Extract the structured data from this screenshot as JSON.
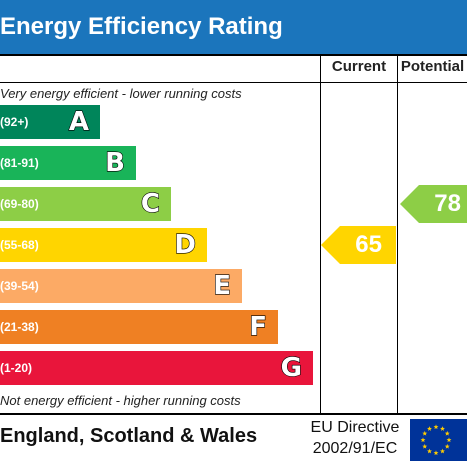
{
  "title": "Energy Efficiency Rating",
  "columns": {
    "current": "Current",
    "potential": "Potential"
  },
  "captions": {
    "top": "Very energy efficient - lower running costs",
    "bottom": "Not energy efficient - higher running costs"
  },
  "footer": {
    "country": "England, Scotland & Wales",
    "directive_line1": "EU Directive",
    "directive_line2": "2002/91/EC",
    "flag_icon": "eu-flag-icon"
  },
  "chart_data": {
    "type": "bar",
    "title": "Energy Efficiency Rating",
    "categories": [
      "A",
      "B",
      "C",
      "D",
      "E",
      "F",
      "G"
    ],
    "bands": [
      {
        "letter": "A",
        "range": "(92+)",
        "min": 92,
        "max": 100,
        "color": "#00855a"
      },
      {
        "letter": "B",
        "range": "(81-91)",
        "min": 81,
        "max": 91,
        "color": "#19b459"
      },
      {
        "letter": "C",
        "range": "(69-80)",
        "min": 69,
        "max": 80,
        "color": "#8dce46"
      },
      {
        "letter": "D",
        "range": "(55-68)",
        "min": 55,
        "max": 68,
        "color": "#ffd500"
      },
      {
        "letter": "E",
        "range": "(39-54)",
        "min": 39,
        "max": 54,
        "color": "#fcaa65"
      },
      {
        "letter": "F",
        "range": "(21-38)",
        "min": 21,
        "max": 38,
        "color": "#ef8023"
      },
      {
        "letter": "G",
        "range": "(1-20)",
        "min": 1,
        "max": 20,
        "color": "#e9153b"
      }
    ],
    "current": {
      "label": "Current",
      "value": 65,
      "band": "D",
      "color": "#ffd500"
    },
    "potential": {
      "label": "Potential",
      "value": 78,
      "band": "C",
      "color": "#8dce46"
    }
  }
}
